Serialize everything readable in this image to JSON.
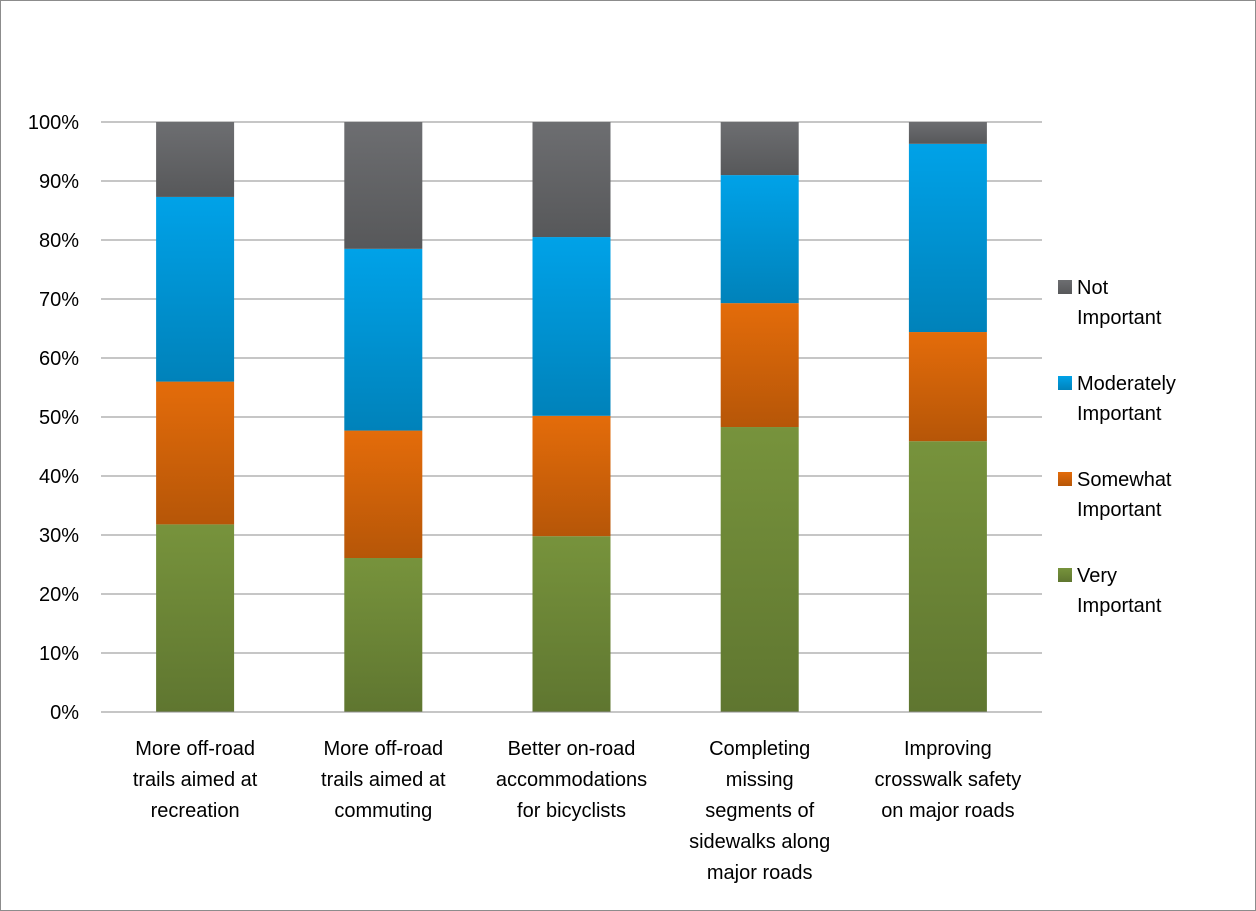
{
  "chart_data": {
    "type": "bar",
    "stacked": true,
    "title": "",
    "xlabel": "",
    "ylabel": "",
    "ylim": [
      0,
      100
    ],
    "y_ticks": [
      "0%",
      "10%",
      "20%",
      "30%",
      "40%",
      "50%",
      "60%",
      "70%",
      "80%",
      "90%",
      "100%"
    ],
    "y_tick_values": [
      0,
      10,
      20,
      30,
      40,
      50,
      60,
      70,
      80,
      90,
      100
    ],
    "grid": true,
    "legend_position": "right",
    "categories": [
      [
        "More off-road",
        "trails aimed at",
        "recreation"
      ],
      [
        "More off-road",
        "trails aimed at",
        "commuting"
      ],
      [
        "Better on-road",
        "accommodations",
        "for bicyclists"
      ],
      [
        "Completing",
        "missing",
        "segments of",
        "sidewalks along",
        "major roads"
      ],
      [
        "Improving",
        "crosswalk safety",
        "on major roads"
      ]
    ],
    "series": [
      {
        "name": [
          "Very",
          "Important"
        ],
        "color": "#77933c",
        "values": [
          31.8,
          26.1,
          29.8,
          48.3,
          45.9
        ]
      },
      {
        "name": [
          "Somewhat",
          "Important"
        ],
        "color": "#e46c0a",
        "values": [
          24.2,
          21.6,
          20.4,
          21.0,
          18.5
        ]
      },
      {
        "name": [
          "Moderately",
          "Important"
        ],
        "color": "#00a2e8",
        "values": [
          31.3,
          30.8,
          30.3,
          21.7,
          31.9
        ]
      },
      {
        "name": [
          "Not",
          "Important"
        ],
        "color": "#6d6e71",
        "values": [
          12.7,
          21.5,
          19.5,
          9.0,
          3.7
        ]
      }
    ]
  }
}
